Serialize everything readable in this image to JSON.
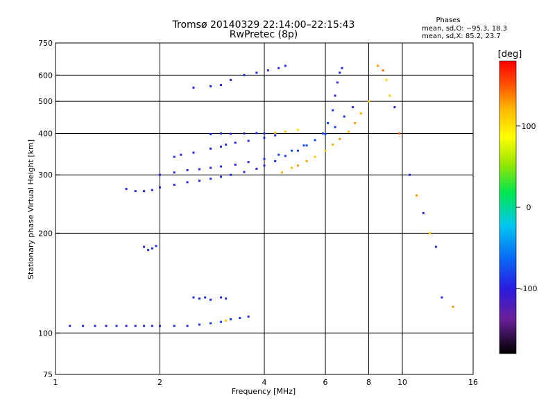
{
  "chart_data": {
    "type": "scatter",
    "title": "Tromsø 20140329 22:14:00–22:15:43",
    "subtitle": "RwPretec (8p)",
    "stats": {
      "heading": "Phases",
      "line1": "mean, sd,O: −95.3, 18.3",
      "line2": "mean, sd,X:  85.2, 23.7"
    },
    "xlabel": "Frequency [MHz]",
    "ylabel": "Stationary phase Virtual Height [km]",
    "x_scale": "log",
    "y_scale": "log",
    "xlim": [
      1,
      16
    ],
    "ylim": [
      75,
      750
    ],
    "x_ticks": [
      1,
      2,
      4,
      6,
      8,
      10,
      16
    ],
    "y_ticks": [
      75,
      100,
      200,
      300,
      400,
      500,
      600,
      750
    ],
    "x_gridlines": [
      2,
      4,
      6,
      8,
      10
    ],
    "y_gridlines": [
      100,
      200,
      300,
      400,
      500,
      600
    ],
    "grid": true,
    "colorbar": {
      "label": "[deg]",
      "range": [
        -180,
        180
      ],
      "ticks": [
        100,
        0,
        -100
      ]
    },
    "colormap": [
      "#000000",
      "#6a1f9a",
      "#2a1adf",
      "#0a64f5",
      "#00c8f0",
      "#00e650",
      "#9be600",
      "#ffff00",
      "#ffb400",
      "#ff5000",
      "#ff0000"
    ],
    "series": [
      {
        "x": [
          1.1,
          1.2,
          1.3,
          1.4,
          1.5,
          1.6,
          1.7,
          1.8,
          1.9,
          2.0,
          2.2,
          2.4,
          2.6,
          2.8,
          3.0,
          3.1,
          3.2,
          3.4,
          3.6
        ],
        "y": [
          105,
          105,
          105,
          105,
          105,
          105,
          105,
          105,
          105,
          105,
          105,
          105,
          106,
          107,
          108,
          109,
          110,
          111,
          112
        ],
        "phase": [
          -100,
          -100,
          -100,
          -100,
          -100,
          -100,
          -100,
          -100,
          -100,
          -100,
          -100,
          -100,
          -95,
          -90,
          -85,
          100,
          -90,
          -95,
          -100
        ]
      },
      {
        "x": [
          1.8,
          1.85,
          1.9,
          1.95
        ],
        "y": [
          182,
          178,
          180,
          183
        ],
        "phase": [
          -100,
          -100,
          -100,
          -100
        ]
      },
      {
        "x": [
          2.5,
          2.6,
          2.7,
          2.8,
          3.0,
          3.1
        ],
        "y": [
          128,
          127,
          128,
          126,
          128,
          127
        ],
        "phase": [
          -100,
          -100,
          -100,
          -100,
          -100,
          -100
        ]
      },
      {
        "x": [
          1.6,
          1.7,
          1.8,
          1.9,
          2.0,
          2.2,
          2.4,
          2.6,
          2.8,
          3.0,
          3.2,
          3.5,
          3.8,
          4.0,
          4.3,
          4.6,
          5.0,
          5.3,
          5.6,
          5.9,
          6.1,
          6.3,
          6.4,
          6.5,
          6.6,
          6.7
        ],
        "y": [
          272,
          268,
          268,
          270,
          275,
          280,
          285,
          288,
          292,
          296,
          300,
          306,
          313,
          320,
          330,
          342,
          355,
          368,
          382,
          400,
          430,
          470,
          520,
          570,
          610,
          630
        ],
        "phase": [
          -100,
          -100,
          -100,
          -100,
          -100,
          -100,
          -100,
          -100,
          -100,
          -100,
          -100,
          -100,
          -100,
          -100,
          -100,
          -95,
          -90,
          -85,
          -85,
          -90,
          -90,
          -95,
          -100,
          -100,
          -100,
          -100
        ]
      },
      {
        "x": [
          2.0,
          2.2,
          2.4,
          2.6,
          2.8,
          3.0,
          3.3,
          3.6,
          4.0,
          4.4,
          4.8,
          5.2,
          5.6,
          6.0,
          6.4,
          6.8,
          7.2
        ],
        "y": [
          300,
          305,
          310,
          312,
          315,
          318,
          322,
          328,
          335,
          345,
          355,
          368,
          382,
          398,
          418,
          450,
          480
        ],
        "phase": [
          -100,
          -100,
          -100,
          -100,
          -100,
          -100,
          -100,
          -100,
          -95,
          -90,
          -85,
          -80,
          -80,
          -85,
          -90,
          -95,
          -100
        ]
      },
      {
        "x": [
          4.5,
          4.8,
          5.0,
          5.3,
          5.6,
          6.0,
          6.3,
          6.6,
          7.0,
          7.3,
          7.6,
          8.0
        ],
        "y": [
          305,
          315,
          320,
          330,
          340,
          355,
          370,
          385,
          405,
          430,
          460,
          500
        ],
        "phase": [
          110,
          105,
          120,
          115,
          100,
          95,
          110,
          120,
          105,
          115,
          110,
          100
        ]
      },
      {
        "x": [
          2.8,
          3.0,
          3.2,
          3.5,
          3.8,
          4.0,
          4.3,
          4.6,
          5.0
        ],
        "y": [
          398,
          400,
          399,
          400,
          401,
          400,
          402,
          405,
          410
        ],
        "phase": [
          -100,
          -100,
          -100,
          -100,
          -100,
          -95,
          110,
          100,
          90
        ]
      },
      {
        "x": [
          2.2,
          2.3,
          2.5,
          2.8,
          3.0,
          3.1,
          3.3,
          3.6,
          4.0,
          4.3
        ],
        "y": [
          340,
          345,
          350,
          360,
          365,
          370,
          375,
          380,
          388,
          395
        ],
        "phase": [
          -100,
          -100,
          -100,
          -100,
          -100,
          -100,
          -100,
          -100,
          -100,
          -100
        ]
      },
      {
        "x": [
          2.5,
          2.8,
          3.0,
          3.2,
          3.5,
          3.8,
          4.1,
          4.4,
          4.6
        ],
        "y": [
          550,
          555,
          560,
          580,
          600,
          610,
          620,
          630,
          640
        ],
        "phase": [
          -100,
          -100,
          -100,
          -100,
          -100,
          -100,
          -100,
          -100,
          -100
        ]
      },
      {
        "x": [
          8.5,
          8.8,
          9.0,
          9.2,
          9.5,
          9.8,
          10.5,
          11.0,
          11.5,
          12.0,
          12.5,
          13.0,
          14.0
        ],
        "y": [
          640,
          620,
          580,
          520,
          480,
          400,
          300,
          260,
          230,
          200,
          182,
          128,
          120
        ],
        "phase": [
          120,
          130,
          90,
          100,
          -100,
          140,
          -100,
          120,
          -100,
          100,
          -100,
          -100,
          120
        ]
      }
    ]
  }
}
